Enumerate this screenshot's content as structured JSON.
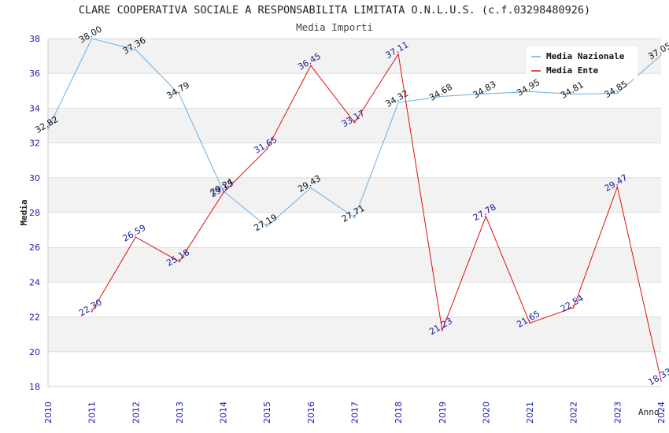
{
  "chart_data": {
    "type": "line",
    "title": "CLARE COOPERATIVA SOCIALE A RESPONSABILITA LIMITATA O.N.L.U.S. (c.f.03298480926)",
    "subtitle": "Media Importi",
    "xlabel": "Anno",
    "ylabel": "Media",
    "ylim": [
      18,
      38
    ],
    "yticks": [
      "18",
      "20",
      "22",
      "24",
      "26",
      "28",
      "30",
      "32",
      "34",
      "36",
      "38"
    ],
    "categories": [
      "2010",
      "2011",
      "2012",
      "2013",
      "2014",
      "2015",
      "2016",
      "2017",
      "2018",
      "2019",
      "2020",
      "2021",
      "2022",
      "2023",
      "2024"
    ],
    "legend_position": "top-right",
    "series": [
      {
        "name": "Media Nazionale",
        "color": "#6aaee8",
        "label_color": "#111111",
        "values": [
          32.82,
          38.0,
          37.36,
          34.79,
          29.24,
          27.19,
          29.43,
          27.71,
          34.32,
          34.68,
          34.83,
          34.95,
          34.81,
          34.85,
          37.05
        ],
        "labels": [
          "32.82",
          "38.00",
          "37.36",
          "34.79",
          "29.24",
          "27.19",
          "29.43",
          "27.71",
          "34.32",
          "34.68",
          "34.83",
          "34.95",
          "34.81",
          "34.85",
          "37.05"
        ]
      },
      {
        "name": "Media Ente",
        "color": "#e01010",
        "label_color": "#1a1a99",
        "values": [
          null,
          22.3,
          26.59,
          25.18,
          29.13,
          31.65,
          36.45,
          33.17,
          37.11,
          21.23,
          27.78,
          21.65,
          22.54,
          29.47,
          18.33
        ],
        "labels": [
          null,
          "22.30",
          "26.59",
          "25.18",
          "29.13",
          "31.65",
          "36.45",
          "33.17",
          "37.11",
          "21.23",
          "27.78",
          "21.65",
          "22.54",
          "29.47",
          "18.33"
        ]
      }
    ]
  }
}
